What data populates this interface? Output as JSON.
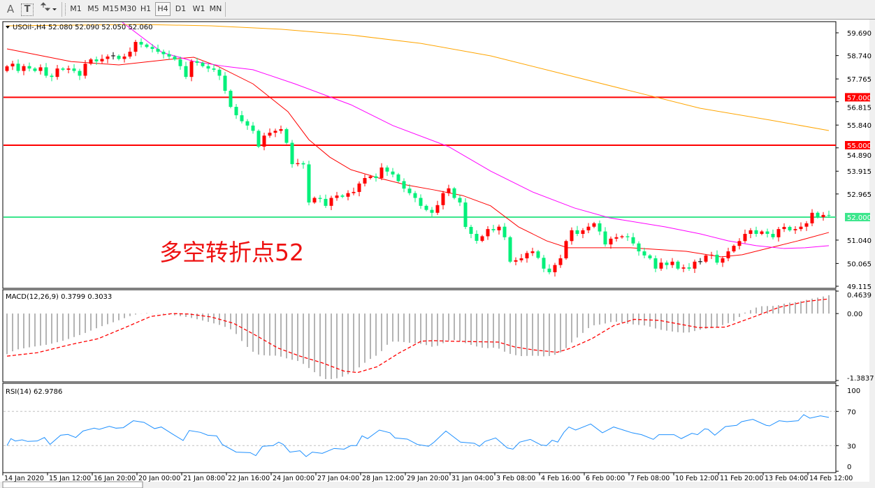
{
  "toolbar": {
    "text_tool": "A",
    "textbox_tool": "T",
    "timeframes": [
      "M1",
      "M5",
      "M15",
      "M30",
      "H1",
      "H4",
      "D1",
      "W1",
      "MN"
    ],
    "selected_timeframe": "H4"
  },
  "chart": {
    "header": "USOil-,H4  52.080 52.090 52.050 52.060",
    "annotation": "多空转折点52",
    "price_axis_labels": [
      "59.690",
      "58.740",
      "57.765",
      "56.815",
      "55.840",
      "54.890",
      "53.915",
      "52.965",
      "51.040",
      "50.065",
      "49.115"
    ],
    "levels": [
      {
        "price": 57.0,
        "label": "57.000",
        "color": "#ff0000"
      },
      {
        "price": 55.0,
        "label": "55.000",
        "color": "#ff0000"
      },
      {
        "price": 52.0,
        "label": "52.000",
        "color": "#3ce68c"
      }
    ],
    "date_labels": [
      "14 Jan 2020",
      "15 Jan 12:00",
      "16 Jan 20:00",
      "20 Jan 00:00",
      "21 Jan 08:00",
      "22 Jan 16:00",
      "24 Jan 00:00",
      "27 Jan 04:00",
      "28 Jan 12:00",
      "29 Jan 20:00",
      "31 Jan 04:00",
      "3 Feb 08:00",
      "4 Feb 16:00",
      "6 Feb 00:00",
      "7 Feb 08:00",
      "10 Feb 12:00",
      "11 Feb 20:00",
      "13 Feb 04:00",
      "14 Feb 12:00"
    ]
  },
  "macd": {
    "label": "MACD(12,26,9) 0.3799 0.3033",
    "axis_labels": [
      "0.4639",
      "0.00",
      "-1.3837"
    ]
  },
  "rsi": {
    "label": "RSI(14) 62.9786",
    "axis_labels": [
      "100",
      "70",
      "30",
      "0"
    ]
  },
  "colors": {
    "bull_candle": "#ff0000",
    "bear_candle": "#00f07a",
    "ma_fast": "#ff0000",
    "ma_mid": "#ff00ff",
    "ma_slow": "#ffa500",
    "macd_hist": "#b4b4b4",
    "macd_signal": "#ff0000",
    "rsi_line": "#1e90ff",
    "annotation": "#ee1111"
  },
  "chart_data": [
    {
      "type": "candlestick",
      "symbol": "USOil-",
      "timeframe": "H4",
      "ylim": [
        49.115,
        59.69
      ],
      "x_tick_labels_every_n_bars": 8,
      "close": [
        58.29,
        58.4,
        58.1,
        58.3,
        58.2,
        58.1,
        58.25,
        57.9,
        57.85,
        58.2,
        58.15,
        58.2,
        58.1,
        57.9,
        58.4,
        58.58,
        58.5,
        58.6,
        58.7,
        58.73,
        58.6,
        58.7,
        58.9,
        59.31,
        59.2,
        59.1,
        59.02,
        58.9,
        58.8,
        58.7,
        58.58,
        58.3,
        57.85,
        58.5,
        58.44,
        58.3,
        58.2,
        58.15,
        57.9,
        57.27,
        56.6,
        56.25,
        56.0,
        55.82,
        55.6,
        54.94,
        55.4,
        55.52,
        55.6,
        55.67,
        55.1,
        54.21,
        54.25,
        54.2,
        52.61,
        52.8,
        52.76,
        52.47,
        52.8,
        52.9,
        52.85,
        53.0,
        53.05,
        53.4,
        53.63,
        53.7,
        53.63,
        54.07,
        53.9,
        53.78,
        53.5,
        53.19,
        53.0,
        52.8,
        52.47,
        52.3,
        52.18,
        52.5,
        53.0,
        53.2,
        52.8,
        52.61,
        51.59,
        51.3,
        51.01,
        51.2,
        51.5,
        51.45,
        51.6,
        51.16,
        50.14,
        50.2,
        50.28,
        50.5,
        50.57,
        50.3,
        49.85,
        49.7,
        50.0,
        50.28,
        51.0,
        51.45,
        51.3,
        51.45,
        51.6,
        51.74,
        51.4,
        50.86,
        51.1,
        51.16,
        51.2,
        51.16,
        50.9,
        50.57,
        50.4,
        50.28,
        49.85,
        50.1,
        50.0,
        50.14,
        49.85,
        49.9,
        49.85,
        50.14,
        50.14,
        50.4,
        50.43,
        50.1,
        50.28,
        50.57,
        50.8,
        51.0,
        51.3,
        51.45,
        51.3,
        51.4,
        51.3,
        51.16,
        51.5,
        51.59,
        51.45,
        51.5,
        51.6,
        51.74,
        52.18,
        52.0,
        52.09,
        52.06
      ],
      "last_bar": {
        "open": 52.08,
        "high": 52.09,
        "low": 52.05,
        "close": 52.06
      },
      "moving_averages": [
        {
          "color": "#ff0000",
          "points": [
            [
              0,
              59.02
            ],
            [
              11.5,
              58.49
            ],
            [
              20,
              58.35
            ],
            [
              29,
              58.58
            ],
            [
              33.4,
              58.67
            ],
            [
              37.75,
              58.29
            ],
            [
              44,
              57.56
            ],
            [
              50.25,
              56.4
            ],
            [
              54,
              55.23
            ],
            [
              57.75,
              54.5
            ],
            [
              61.5,
              53.98
            ],
            [
              66.5,
              53.63
            ],
            [
              71.5,
              53.34
            ],
            [
              76.5,
              53.13
            ],
            [
              81.5,
              52.9
            ],
            [
              86.5,
              52.47
            ],
            [
              91.5,
              51.59
            ],
            [
              96.5,
              51.01
            ],
            [
              100.25,
              50.72
            ],
            [
              105.25,
              50.72
            ],
            [
              111.5,
              50.72
            ],
            [
              121.5,
              50.57
            ],
            [
              127.75,
              50.34
            ],
            [
              131.5,
              50.43
            ],
            [
              136.5,
              50.72
            ],
            [
              141.5,
              51.01
            ],
            [
              147,
              51.36
            ]
          ]
        },
        {
          "color": "#ff00ff",
          "points": [
            [
              20,
              60.24
            ],
            [
              27.75,
              58.87
            ],
            [
              33.4,
              58.5
            ],
            [
              39,
              58.29
            ],
            [
              44,
              58.15
            ],
            [
              51.5,
              57.56
            ],
            [
              61.5,
              56.69
            ],
            [
              69,
              55.82
            ],
            [
              79,
              54.94
            ],
            [
              86.5,
              53.92
            ],
            [
              94,
              53.05
            ],
            [
              101.5,
              52.38
            ],
            [
              107.75,
              51.97
            ],
            [
              117.75,
              51.59
            ],
            [
              124,
              51.3
            ],
            [
              129,
              51.01
            ],
            [
              134,
              50.81
            ],
            [
              139,
              50.69
            ],
            [
              142.75,
              50.72
            ],
            [
              147,
              50.81
            ]
          ]
        },
        {
          "color": "#ffa500",
          "points": [
            [
              0,
              59.98
            ],
            [
              24,
              60.04
            ],
            [
              36.5,
              59.98
            ],
            [
              49,
              59.84
            ],
            [
              61.5,
              59.6
            ],
            [
              74,
              59.25
            ],
            [
              86.5,
              58.73
            ],
            [
              99,
              58.0
            ],
            [
              111.5,
              57.27
            ],
            [
              124,
              56.54
            ],
            [
              136.5,
              56.05
            ],
            [
              147,
              55.61
            ]
          ]
        }
      ],
      "horizontal_levels": [
        57.0,
        55.0,
        52.0
      ]
    },
    {
      "type": "bar",
      "indicator": "MACD(12,26,9)",
      "ylim": [
        -1.3837,
        0.4639
      ],
      "main_points": [
        [
          0,
          -0.84
        ],
        [
          1.5,
          -0.75
        ],
        [
          4.4,
          -0.69
        ],
        [
          7.4,
          -0.64
        ],
        [
          10.4,
          -0.55
        ],
        [
          13.6,
          -0.42
        ],
        [
          16.5,
          -0.28
        ],
        [
          19.5,
          -0.16
        ],
        [
          22.5,
          -0.03
        ],
        [
          24.7,
          0.01
        ],
        [
          26.6,
          0.0
        ],
        [
          29.6,
          -0.03
        ],
        [
          32.6,
          -0.08
        ],
        [
          35.6,
          -0.16
        ],
        [
          38.5,
          -0.25
        ],
        [
          40.5,
          -0.35
        ],
        [
          42.5,
          -0.64
        ],
        [
          44.5,
          -0.84
        ],
        [
          46.5,
          -0.87
        ],
        [
          48.4,
          -0.87
        ],
        [
          50.4,
          -0.94
        ],
        [
          52.4,
          -0.99
        ],
        [
          54.4,
          -1.16
        ],
        [
          56.6,
          -1.35
        ],
        [
          57.6,
          -1.36
        ],
        [
          59.5,
          -1.33
        ],
        [
          61.5,
          -1.23
        ],
        [
          62.5,
          -1.16
        ],
        [
          64.5,
          -0.97
        ],
        [
          66.5,
          -0.84
        ],
        [
          68.5,
          -0.58
        ],
        [
          70.4,
          -0.58
        ],
        [
          72.4,
          -0.61
        ],
        [
          74.4,
          -0.63
        ],
        [
          76.4,
          -0.7
        ],
        [
          79.5,
          -0.53
        ],
        [
          81.7,
          -0.6
        ],
        [
          83.6,
          -0.67
        ],
        [
          85.5,
          -0.72
        ],
        [
          87.6,
          -0.7
        ],
        [
          89.5,
          -0.82
        ],
        [
          91.7,
          -0.88
        ],
        [
          94.6,
          -0.87
        ],
        [
          96.5,
          -0.89
        ],
        [
          98.5,
          -0.84
        ],
        [
          99.6,
          -0.76
        ],
        [
          101.5,
          -0.54
        ],
        [
          102.5,
          -0.45
        ],
        [
          103.5,
          -0.35
        ],
        [
          104.5,
          -0.25
        ],
        [
          106.5,
          -0.22
        ],
        [
          108.5,
          -0.16
        ],
        [
          111.5,
          -0.22
        ],
        [
          114.4,
          -0.25
        ],
        [
          116.6,
          -0.33
        ],
        [
          119.5,
          -0.38
        ],
        [
          121.6,
          -0.4
        ],
        [
          124.5,
          -0.32
        ],
        [
          126.6,
          -0.29
        ],
        [
          128.5,
          -0.22
        ],
        [
          130.5,
          -0.13
        ],
        [
          131.6,
          0.0
        ],
        [
          132.6,
          0.05
        ],
        [
          134.5,
          0.15
        ],
        [
          137.6,
          0.16
        ],
        [
          139.5,
          0.22
        ],
        [
          141.5,
          0.24
        ],
        [
          143.6,
          0.3
        ],
        [
          145.5,
          0.34
        ],
        [
          147,
          0.3799
        ]
      ],
      "signal_points": [
        [
          0,
          -0.88
        ],
        [
          5.4,
          -0.81
        ],
        [
          11.4,
          -0.64
        ],
        [
          16.3,
          -0.52
        ],
        [
          21.3,
          -0.28
        ],
        [
          25.7,
          -0.06
        ],
        [
          29.6,
          0.0
        ],
        [
          32.6,
          -0.01
        ],
        [
          36.5,
          -0.07
        ],
        [
          40.5,
          -0.2
        ],
        [
          44.5,
          -0.45
        ],
        [
          48.4,
          -0.71
        ],
        [
          52.4,
          -0.88
        ],
        [
          56.4,
          -1.02
        ],
        [
          60.3,
          -1.19
        ],
        [
          62.7,
          -1.22
        ],
        [
          66.2,
          -1.1
        ],
        [
          70.2,
          -0.81
        ],
        [
          74.1,
          -0.57
        ],
        [
          76.4,
          -0.56
        ],
        [
          78.8,
          -0.57
        ],
        [
          87.9,
          -0.59
        ],
        [
          90.8,
          -0.69
        ],
        [
          94.1,
          -0.75
        ],
        [
          98.4,
          -0.8
        ],
        [
          100.7,
          -0.72
        ],
        [
          104.6,
          -0.52
        ],
        [
          108.5,
          -0.25
        ],
        [
          112.2,
          -0.12
        ],
        [
          116.6,
          -0.14
        ],
        [
          119.9,
          -0.21
        ],
        [
          123.7,
          -0.29
        ],
        [
          128.5,
          -0.28
        ],
        [
          133.3,
          -0.08
        ],
        [
          138.1,
          0.13
        ],
        [
          142.9,
          0.25
        ],
        [
          147,
          0.3033
        ]
      ]
    },
    {
      "type": "line",
      "indicator": "RSI(14)",
      "ylim": [
        0,
        100
      ],
      "levels": [
        70,
        30
      ],
      "points": [
        [
          0,
          30
        ],
        [
          0.7,
          38.2
        ],
        [
          1.5,
          35.4
        ],
        [
          2.7,
          36.8
        ],
        [
          3.7,
          34.9
        ],
        [
          5.4,
          35.4
        ],
        [
          6.7,
          39.5
        ],
        [
          7.7,
          31.4
        ],
        [
          9.6,
          42.2
        ],
        [
          10.9,
          43.1
        ],
        [
          12.3,
          39.5
        ],
        [
          13.6,
          47.1
        ],
        [
          15.6,
          50.4
        ],
        [
          16.5,
          49.0
        ],
        [
          18.3,
          52.6
        ],
        [
          19.5,
          50.4
        ],
        [
          20.8,
          51.0
        ],
        [
          22.6,
          59.1
        ],
        [
          24.5,
          57.2
        ],
        [
          26.4,
          49.9
        ],
        [
          27.6,
          51.8
        ],
        [
          29.6,
          43.6
        ],
        [
          31.5,
          36.0
        ],
        [
          32.6,
          47.7
        ],
        [
          34.6,
          45.5
        ],
        [
          35.9,
          42.2
        ],
        [
          37.5,
          41.4
        ],
        [
          38.5,
          31.4
        ],
        [
          41,
          22.4
        ],
        [
          43.5,
          21.8
        ],
        [
          44.5,
          18.3
        ],
        [
          45.7,
          29.2
        ],
        [
          47.6,
          30
        ],
        [
          48.6,
          34.1
        ],
        [
          49.4,
          31.4
        ],
        [
          50.6,
          22.4
        ],
        [
          52.4,
          24
        ],
        [
          53.5,
          17.2
        ],
        [
          54.6,
          22.4
        ],
        [
          56.4,
          21
        ],
        [
          58.5,
          26.7
        ],
        [
          60.3,
          25.9
        ],
        [
          61.5,
          30
        ],
        [
          62.5,
          30
        ],
        [
          63.5,
          41.4
        ],
        [
          64.5,
          38.2
        ],
        [
          66.6,
          48.2
        ],
        [
          68.5,
          45
        ],
        [
          69.4,
          39
        ],
        [
          71.6,
          37.6
        ],
        [
          73.4,
          31.4
        ],
        [
          75.4,
          29.2
        ],
        [
          76.4,
          34.1
        ],
        [
          78.5,
          47.1
        ],
        [
          81.1,
          34.1
        ],
        [
          83.6,
          32.7
        ],
        [
          84.5,
          29.2
        ],
        [
          85.5,
          34.9
        ],
        [
          87.4,
          39
        ],
        [
          89.5,
          27.3
        ],
        [
          90.5,
          25.9
        ],
        [
          91.7,
          34.1
        ],
        [
          93.6,
          37.3
        ],
        [
          95.5,
          30.8
        ],
        [
          96.5,
          30
        ],
        [
          97.5,
          36.3
        ],
        [
          98.5,
          34.1
        ],
        [
          99.6,
          45.5
        ],
        [
          100.5,
          51.8
        ],
        [
          101.7,
          48.2
        ],
        [
          104.4,
          55.3
        ],
        [
          106.5,
          45
        ],
        [
          108.5,
          51.8
        ],
        [
          111.8,
          45
        ],
        [
          113.5,
          42.8
        ],
        [
          115.6,
          37.3
        ],
        [
          116.6,
          42.8
        ],
        [
          119.3,
          42.8
        ],
        [
          120.6,
          38.2
        ],
        [
          122.5,
          44.4
        ],
        [
          123.5,
          42.8
        ],
        [
          124.8,
          49.6
        ],
        [
          125.4,
          49
        ],
        [
          126.6,
          42.2
        ],
        [
          128.5,
          52.3
        ],
        [
          130.5,
          53.7
        ],
        [
          131.4,
          58
        ],
        [
          133.4,
          60.7
        ],
        [
          135.8,
          53.7
        ],
        [
          136.4,
          53.1
        ],
        [
          138.1,
          59.1
        ],
        [
          139.5,
          58
        ],
        [
          141.5,
          59.1
        ],
        [
          142.5,
          66.2
        ],
        [
          143.6,
          62.1
        ],
        [
          145.5,
          64.8
        ],
        [
          147,
          62.9786
        ]
      ]
    }
  ]
}
